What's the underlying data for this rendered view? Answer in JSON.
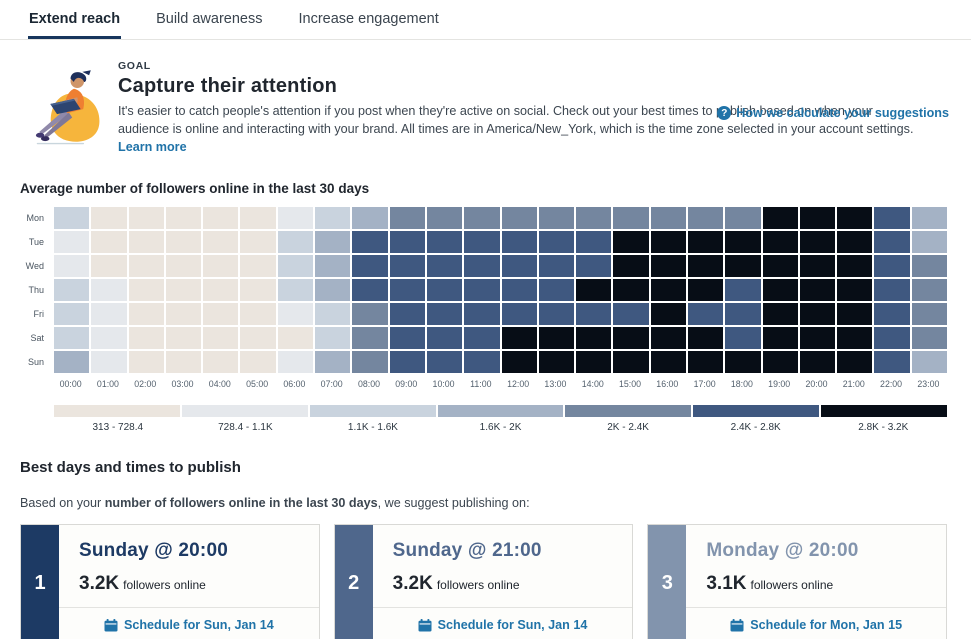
{
  "tabs": [
    {
      "label": "Extend reach",
      "active": true
    },
    {
      "label": "Build awareness",
      "active": false
    },
    {
      "label": "Increase engagement",
      "active": false
    }
  ],
  "help_link": {
    "label": "How we calculate your suggestions",
    "icon": "question-circle-icon"
  },
  "goal": {
    "eyebrow": "GOAL",
    "title": "Capture their attention",
    "description": "It's easier to catch people's attention if you post when they're active on social. Check out your best times to publish based on when your audience is online and interacting with your brand. All times are in America/New_York, which is the time zone selected in your account settings. ",
    "learn_more": "Learn more"
  },
  "chart_data": {
    "type": "heatmap",
    "title": "Average number of followers online in the last 30 days",
    "x_labels": [
      "00:00",
      "01:00",
      "02:00",
      "03:00",
      "04:00",
      "05:00",
      "06:00",
      "07:00",
      "08:00",
      "09:00",
      "10:00",
      "11:00",
      "12:00",
      "13:00",
      "14:00",
      "15:00",
      "16:00",
      "17:00",
      "18:00",
      "19:00",
      "20:00",
      "21:00",
      "22:00",
      "23:00"
    ],
    "y_labels": [
      "Mon",
      "Tue",
      "Wed",
      "Thu",
      "Fri",
      "Sat",
      "Sun"
    ],
    "legend_ranges": [
      "313 - 728.4",
      "728.4 - 1.1K",
      "1.1K - 1.6K",
      "1.6K - 2K",
      "2K - 2.4K",
      "2.4K - 2.8K",
      "2.8K - 3.2K"
    ],
    "colors": [
      "#ebe5de",
      "#e5e8ec",
      "#c9d3de",
      "#a4b2c5",
      "#74869f",
      "#3f5880",
      "#070d16"
    ],
    "matrix": [
      [
        3,
        1,
        1,
        1,
        1,
        1,
        2,
        3,
        4,
        5,
        5,
        5,
        5,
        5,
        5,
        5,
        5,
        5,
        5,
        7,
        7,
        7,
        6,
        4
      ],
      [
        2,
        1,
        1,
        1,
        1,
        1,
        3,
        4,
        6,
        6,
        6,
        6,
        6,
        6,
        6,
        7,
        7,
        7,
        7,
        7,
        7,
        7,
        6,
        4
      ],
      [
        2,
        1,
        1,
        1,
        1,
        1,
        3,
        4,
        6,
        6,
        6,
        6,
        6,
        6,
        6,
        7,
        7,
        7,
        7,
        7,
        7,
        7,
        6,
        5
      ],
      [
        3,
        2,
        1,
        1,
        1,
        1,
        3,
        4,
        6,
        6,
        6,
        6,
        6,
        6,
        7,
        7,
        7,
        7,
        6,
        7,
        7,
        7,
        6,
        5
      ],
      [
        3,
        2,
        1,
        1,
        1,
        1,
        2,
        3,
        5,
        6,
        6,
        6,
        6,
        6,
        6,
        6,
        7,
        6,
        6,
        7,
        7,
        7,
        6,
        5
      ],
      [
        3,
        2,
        1,
        1,
        1,
        1,
        1,
        3,
        5,
        6,
        6,
        6,
        7,
        7,
        7,
        7,
        7,
        7,
        6,
        7,
        7,
        7,
        6,
        5
      ],
      [
        4,
        2,
        1,
        1,
        1,
        1,
        2,
        4,
        5,
        6,
        6,
        6,
        7,
        7,
        7,
        7,
        7,
        7,
        7,
        7,
        7,
        7,
        6,
        4
      ]
    ],
    "value_note": "matrix values are 1-7 bucket indices into legend_ranges"
  },
  "best": {
    "heading": "Best days and times to publish",
    "intro_prefix": "Based on your ",
    "intro_bold": "number of followers online in the last 30 days",
    "intro_suffix": ", we suggest publishing on:",
    "cards": [
      {
        "rank": "1",
        "accent": "#1d3a64",
        "title": "Sunday @ 20:00",
        "value": "3.2K",
        "value_suffix": "followers online",
        "schedule_label": "Schedule for Sun, Jan 14"
      },
      {
        "rank": "2",
        "accent": "#4f678c",
        "title": "Sunday @ 21:00",
        "value": "3.2K",
        "value_suffix": "followers online",
        "schedule_label": "Schedule for Sun, Jan 14"
      },
      {
        "rank": "3",
        "accent": "#8294ad",
        "title": "Monday @ 20:00",
        "value": "3.1K",
        "value_suffix": "followers online",
        "schedule_label": "Schedule for Mon, Jan 15"
      }
    ]
  }
}
